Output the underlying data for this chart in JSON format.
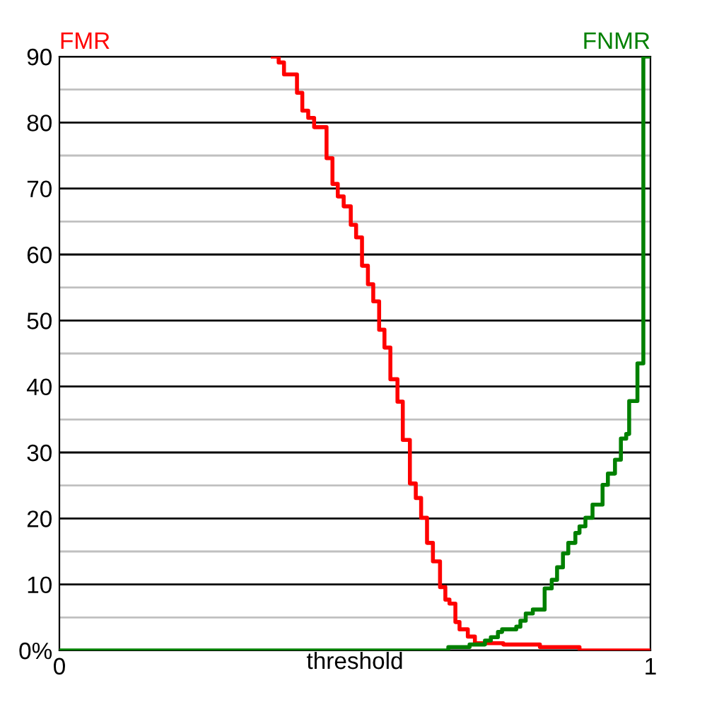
{
  "chart_data": {
    "type": "step",
    "xlabel": "threshold",
    "xlim": [
      0,
      1
    ],
    "ylim": [
      0,
      90
    ],
    "xticks": [
      0,
      1
    ],
    "yticks": [
      {
        "value": 0,
        "label": "0%"
      },
      {
        "value": 5,
        "label": null
      },
      10,
      {
        "value": 15,
        "label": null
      },
      20,
      {
        "value": 25,
        "label": null
      },
      30,
      {
        "value": 35,
        "label": null
      },
      40,
      {
        "value": 45,
        "label": null
      },
      50,
      {
        "value": 55,
        "label": null
      },
      60,
      {
        "value": 65,
        "label": null
      },
      70,
      {
        "value": 75,
        "label": null
      },
      80,
      {
        "value": 85,
        "label": null
      },
      90
    ],
    "grid": "y",
    "series": [
      {
        "name": "FMR",
        "color": "#ff0000",
        "x": [
          0.361,
          0.371,
          0.38,
          0.402,
          0.411,
          0.421,
          0.431,
          0.452,
          0.462,
          0.471,
          0.481,
          0.493,
          0.502,
          0.512,
          0.522,
          0.531,
          0.541,
          0.55,
          0.56,
          0.572,
          0.581,
          0.593,
          0.603,
          0.612,
          0.622,
          0.632,
          0.644,
          0.653,
          0.66,
          0.67,
          0.677,
          0.691,
          0.703,
          0.751,
          0.813,
          0.88,
          1
        ],
        "values": [
          90,
          89.1,
          87.3,
          84.5,
          81.8,
          80.7,
          79.3,
          74.6,
          70.7,
          68.8,
          67.3,
          64.5,
          62.6,
          58.3,
          55.5,
          52.9,
          48.6,
          45.9,
          41.1,
          37.7,
          31.9,
          25.3,
          23.1,
          20.1,
          16.3,
          13.5,
          9.6,
          7.7,
          7.1,
          4.3,
          3.2,
          2.1,
          1.1,
          0.9,
          0.5,
          0,
          0
        ]
      },
      {
        "name": "FNMR",
        "color": "#008000",
        "x": [
          0,
          0.658,
          0.694,
          0.72,
          0.73,
          0.742,
          0.749,
          0.773,
          0.78,
          0.789,
          0.801,
          0.821,
          0.833,
          0.842,
          0.852,
          0.861,
          0.873,
          0.88,
          0.89,
          0.902,
          0.919,
          0.928,
          0.94,
          0.95,
          0.959,
          0.964,
          0.978,
          0.988,
          1
        ],
        "values": [
          0,
          0.5,
          0.9,
          1.5,
          2.0,
          2.8,
          3.2,
          3.6,
          4.5,
          5.6,
          6.2,
          9.4,
          10.7,
          12.6,
          14.7,
          16.3,
          17.8,
          18.8,
          20.1,
          22.1,
          25.1,
          26.8,
          28.9,
          32.1,
          32.8,
          37.8,
          43.5,
          90,
          90
        ]
      }
    ]
  }
}
